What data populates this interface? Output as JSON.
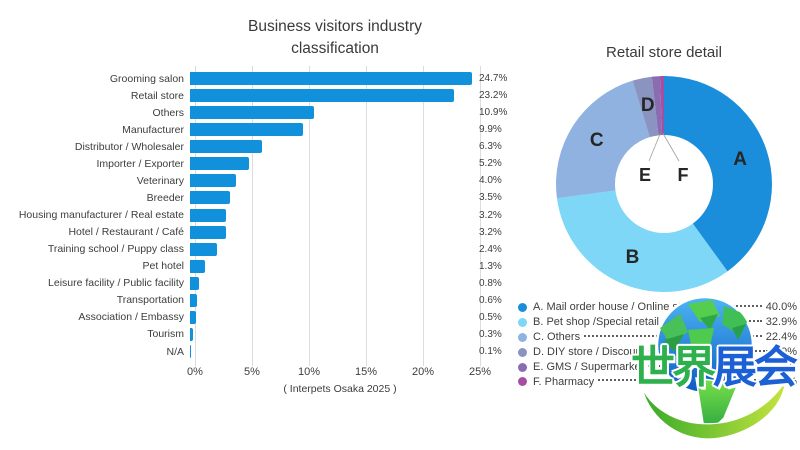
{
  "chart_data": [
    {
      "type": "bar",
      "orientation": "horizontal",
      "title": "Business visitors industry classification",
      "title_lines": [
        "Business visitors industry",
        "classification"
      ],
      "categories": [
        "Grooming salon",
        "Retail store",
        "Others",
        "Manufacturer",
        "Distributor / Wholesaler",
        "Importer / Exporter",
        "Veterinary",
        "Breeder",
        "Housing manufacturer / Real estate",
        "Hotel / Restaurant / Café",
        "Training school / Puppy class",
        "Pet hotel",
        "Leisure facility / Public facility",
        "Transportation",
        "Association / Embassy",
        "Tourism",
        "N/A"
      ],
      "values": [
        24.7,
        23.2,
        10.9,
        9.9,
        6.3,
        5.2,
        4.0,
        3.5,
        3.2,
        3.2,
        2.4,
        1.3,
        0.8,
        0.6,
        0.5,
        0.3,
        0.1
      ],
      "value_labels": [
        "24.7%",
        "23.2%",
        "10.9%",
        "9.9%",
        "6.3%",
        "5.2%",
        "4.0%",
        "3.5%",
        "3.2%",
        "3.2%",
        "2.4%",
        "1.3%",
        "0.8%",
        "0.6%",
        "0.5%",
        "0.3%",
        "0.1%"
      ],
      "xlim": [
        0,
        25
      ],
      "xticks": [
        "0%",
        "5%",
        "10%",
        "15%",
        "20%",
        "25%"
      ],
      "grid": true,
      "bar_color": "#1191dc",
      "caption": "( Interpets Osaka 2025 )"
    },
    {
      "type": "pie",
      "subtype": "donut",
      "title": "Retail store detail",
      "legend_position": "bottom",
      "slices": [
        {
          "key": "A",
          "label": "A. Mail order house / Online store",
          "value": 40.0,
          "display": "40.0%",
          "color": "#1a8edb"
        },
        {
          "key": "B",
          "label": "B. Pet shop /Special retail store",
          "value": 32.9,
          "display": "32.9%",
          "color": "#7ed7f6"
        },
        {
          "key": "C",
          "label": "C. Others",
          "value": 22.4,
          "display": "22.4%",
          "color": "#8fb2e1"
        },
        {
          "key": "D",
          "label": "D. DIY store / Discount store",
          "value": 2.9,
          "display": "2.9%",
          "color": "#8b93c1"
        },
        {
          "key": "E",
          "label": "E. GMS / Supermarket",
          "value": 1.2,
          "display": "1.2%",
          "color": "#8a6cb2"
        },
        {
          "key": "F",
          "label": "F. Pharmacy",
          "value": 0.6,
          "display": "0.6%",
          "color": "#a44fa3"
        }
      ]
    }
  ],
  "watermark": {
    "text": "世界展会",
    "chars": [
      {
        "char": "世",
        "color": "#2eb14d"
      },
      {
        "char": "界",
        "color": "#2eb14d"
      },
      {
        "char": "展",
        "color": "#1c60d6"
      },
      {
        "char": "会",
        "color": "#1c60d6"
      }
    ],
    "globe_water_colors": [
      "#4db5f2",
      "#0d5bc4"
    ],
    "globe_land_colors": [
      "#7be04b",
      "#23a33f"
    ],
    "swoosh_colors": [
      "#35aa28",
      "#c6e43f"
    ]
  }
}
